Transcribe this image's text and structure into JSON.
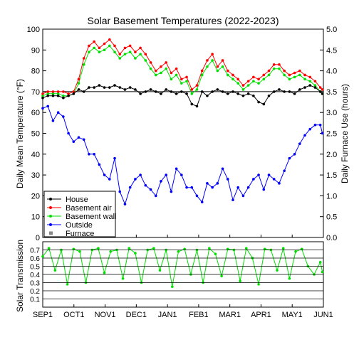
{
  "chart_data": [
    {
      "type": "line",
      "panel": "temperatures",
      "title": "Solar Basement Temperatures (2022-2023)",
      "ylabel": "Daily Mean Temperature (°F)",
      "y2label": "Daily Furnace Use (hours)",
      "ylim": [
        0,
        100
      ],
      "y2lim": [
        0.0,
        5.0
      ],
      "yticks": [
        0,
        10,
        20,
        30,
        40,
        50,
        60,
        70,
        80,
        90,
        100
      ],
      "y2ticks": [
        "0.0",
        "0.5",
        "1.0",
        "1.5",
        "2.0",
        "2.5",
        "3.0",
        "3.5",
        "4.0",
        "4.5",
        "5.0"
      ],
      "grid": "horizontal reference line at 70",
      "legend_position": "bottom-left",
      "series": [
        {
          "name": "House",
          "color": "#000000",
          "marker": "dot",
          "points": [
            [
              0,
              67
            ],
            [
              5,
              68
            ],
            [
              10,
              68
            ],
            [
              15,
              68
            ],
            [
              20,
              67
            ],
            [
              25,
              68
            ],
            [
              30,
              69
            ],
            [
              35,
              71
            ],
            [
              40,
              70
            ],
            [
              45,
              72
            ],
            [
              50,
              72
            ],
            [
              55,
              73
            ],
            [
              60,
              72
            ],
            [
              65,
              72
            ],
            [
              70,
              73
            ],
            [
              75,
              72
            ],
            [
              80,
              71
            ],
            [
              85,
              72
            ],
            [
              90,
              71
            ],
            [
              95,
              69
            ],
            [
              100,
              70
            ],
            [
              105,
              71
            ],
            [
              110,
              70
            ],
            [
              115,
              69
            ],
            [
              120,
              71
            ],
            [
              125,
              70
            ],
            [
              130,
              69
            ],
            [
              135,
              70
            ],
            [
              140,
              69
            ],
            [
              145,
              64
            ],
            [
              150,
              63
            ],
            [
              155,
              70
            ],
            [
              160,
              68
            ],
            [
              165,
              70
            ],
            [
              170,
              71
            ],
            [
              175,
              70
            ],
            [
              180,
              69
            ],
            [
              185,
              70
            ],
            [
              190,
              69
            ],
            [
              195,
              68
            ],
            [
              200,
              69
            ],
            [
              205,
              68
            ],
            [
              210,
              65
            ],
            [
              215,
              64
            ],
            [
              220,
              68
            ],
            [
              225,
              70
            ],
            [
              230,
              71
            ],
            [
              235,
              70
            ],
            [
              240,
              70
            ],
            [
              245,
              69
            ],
            [
              250,
              71
            ],
            [
              255,
              72
            ],
            [
              260,
              73
            ],
            [
              265,
              72
            ],
            [
              270,
              70
            ],
            [
              272,
              69
            ]
          ]
        },
        {
          "name": "Basement air",
          "color": "#ff0000",
          "marker": "dot",
          "points": [
            [
              0,
              69
            ],
            [
              5,
              70
            ],
            [
              10,
              70
            ],
            [
              15,
              70
            ],
            [
              20,
              70
            ],
            [
              25,
              69
            ],
            [
              30,
              70
            ],
            [
              35,
              76
            ],
            [
              40,
              86
            ],
            [
              45,
              92
            ],
            [
              50,
              94
            ],
            [
              55,
              91
            ],
            [
              60,
              93
            ],
            [
              65,
              95
            ],
            [
              70,
              92
            ],
            [
              75,
              88
            ],
            [
              80,
              91
            ],
            [
              85,
              92
            ],
            [
              90,
              89
            ],
            [
              95,
              91
            ],
            [
              100,
              88
            ],
            [
              105,
              84
            ],
            [
              110,
              80
            ],
            [
              115,
              82
            ],
            [
              120,
              84
            ],
            [
              125,
              79
            ],
            [
              130,
              81
            ],
            [
              135,
              76
            ],
            [
              140,
              77
            ],
            [
              145,
              71
            ],
            [
              150,
              73
            ],
            [
              155,
              80
            ],
            [
              160,
              85
            ],
            [
              165,
              88
            ],
            [
              170,
              82
            ],
            [
              175,
              85
            ],
            [
              180,
              80
            ],
            [
              185,
              78
            ],
            [
              190,
              76
            ],
            [
              195,
              73
            ],
            [
              200,
              75
            ],
            [
              205,
              77
            ],
            [
              210,
              76
            ],
            [
              215,
              78
            ],
            [
              220,
              80
            ],
            [
              225,
              83
            ],
            [
              230,
              83
            ],
            [
              235,
              80
            ],
            [
              240,
              78
            ],
            [
              245,
              79
            ],
            [
              250,
              80
            ],
            [
              255,
              78
            ],
            [
              260,
              77
            ],
            [
              265,
              75
            ],
            [
              270,
              72
            ],
            [
              272,
              71
            ]
          ]
        },
        {
          "name": "Basement wall",
          "color": "#00e000",
          "marker": "dot",
          "points": [
            [
              0,
              68
            ],
            [
              5,
              69
            ],
            [
              10,
              69
            ],
            [
              15,
              69
            ],
            [
              20,
              68
            ],
            [
              25,
              68
            ],
            [
              30,
              69
            ],
            [
              35,
              74
            ],
            [
              40,
              83
            ],
            [
              45,
              89
            ],
            [
              50,
              91
            ],
            [
              55,
              89
            ],
            [
              60,
              90
            ],
            [
              65,
              92
            ],
            [
              70,
              89
            ],
            [
              75,
              86
            ],
            [
              80,
              88
            ],
            [
              85,
              89
            ],
            [
              90,
              86
            ],
            [
              95,
              88
            ],
            [
              100,
              85
            ],
            [
              105,
              81
            ],
            [
              110,
              78
            ],
            [
              115,
              79
            ],
            [
              120,
              81
            ],
            [
              125,
              76
            ],
            [
              130,
              78
            ],
            [
              135,
              74
            ],
            [
              140,
              75
            ],
            [
              145,
              69
            ],
            [
              150,
              71
            ],
            [
              155,
              78
            ],
            [
              160,
              82
            ],
            [
              165,
              85
            ],
            [
              170,
              80
            ],
            [
              175,
              82
            ],
            [
              180,
              78
            ],
            [
              185,
              76
            ],
            [
              190,
              74
            ],
            [
              195,
              71
            ],
            [
              200,
              73
            ],
            [
              205,
              75
            ],
            [
              210,
              74
            ],
            [
              215,
              76
            ],
            [
              220,
              78
            ],
            [
              225,
              81
            ],
            [
              230,
              81
            ],
            [
              235,
              78
            ],
            [
              240,
              76
            ],
            [
              245,
              77
            ],
            [
              250,
              78
            ],
            [
              255,
              76
            ],
            [
              260,
              75
            ],
            [
              265,
              73
            ],
            [
              270,
              70
            ],
            [
              272,
              69
            ]
          ]
        },
        {
          "name": "Outside",
          "color": "#0000ff",
          "marker": "dot",
          "points": [
            [
              0,
              62
            ],
            [
              5,
              63
            ],
            [
              10,
              56
            ],
            [
              15,
              60
            ],
            [
              20,
              58
            ],
            [
              25,
              50
            ],
            [
              30,
              46
            ],
            [
              35,
              48
            ],
            [
              40,
              47
            ],
            [
              45,
              40
            ],
            [
              50,
              40
            ],
            [
              55,
              35
            ],
            [
              60,
              30
            ],
            [
              65,
              28
            ],
            [
              70,
              38
            ],
            [
              75,
              22
            ],
            [
              80,
              16
            ],
            [
              85,
              24
            ],
            [
              90,
              28
            ],
            [
              95,
              30
            ],
            [
              100,
              25
            ],
            [
              105,
              23
            ],
            [
              110,
              20
            ],
            [
              115,
              27
            ],
            [
              120,
              30
            ],
            [
              125,
              22
            ],
            [
              130,
              33
            ],
            [
              135,
              30
            ],
            [
              140,
              24
            ],
            [
              145,
              24
            ],
            [
              150,
              20
            ],
            [
              155,
              17
            ],
            [
              160,
              26
            ],
            [
              165,
              24
            ],
            [
              170,
              26
            ],
            [
              175,
              33
            ],
            [
              180,
              28
            ],
            [
              185,
              18
            ],
            [
              190,
              24
            ],
            [
              195,
              20
            ],
            [
              200,
              24
            ],
            [
              205,
              28
            ],
            [
              210,
              30
            ],
            [
              215,
              23
            ],
            [
              220,
              30
            ],
            [
              225,
              28
            ],
            [
              230,
              26
            ],
            [
              235,
              32
            ],
            [
              240,
              38
            ],
            [
              245,
              40
            ],
            [
              250,
              45
            ],
            [
              255,
              49
            ],
            [
              260,
              52
            ],
            [
              265,
              54
            ],
            [
              270,
              54
            ],
            [
              272,
              50
            ]
          ]
        },
        {
          "name": "Furnace",
          "color": "#888888",
          "marker": "square",
          "points": []
        }
      ]
    },
    {
      "type": "line",
      "panel": "solar",
      "ylabel": "Solar Transmission",
      "ylim": [
        0,
        0.8
      ],
      "yticks": [
        "0.1",
        "0.2",
        "0.3",
        "0.4",
        "0.5",
        "0.6",
        "0.7"
      ],
      "xlabels": [
        "SEP1",
        "OCT1",
        "NOV1",
        "DEC1",
        "JAN1",
        "FEB1",
        "MAR1",
        "APR1",
        "MAY1",
        "JUN1"
      ],
      "series": [
        {
          "name": "",
          "color": "#00e000",
          "marker": "dot",
          "points": [
            [
              0,
              0.62
            ],
            [
              6,
              0.72
            ],
            [
              12,
              0.45
            ],
            [
              18,
              0.7
            ],
            [
              24,
              0.28
            ],
            [
              30,
              0.71
            ],
            [
              36,
              0.68
            ],
            [
              42,
              0.3
            ],
            [
              48,
              0.7
            ],
            [
              54,
              0.72
            ],
            [
              60,
              0.42
            ],
            [
              66,
              0.68
            ],
            [
              72,
              0.7
            ],
            [
              78,
              0.35
            ],
            [
              84,
              0.72
            ],
            [
              90,
              0.66
            ],
            [
              96,
              0.3
            ],
            [
              102,
              0.7
            ],
            [
              108,
              0.72
            ],
            [
              114,
              0.45
            ],
            [
              120,
              0.7
            ],
            [
              126,
              0.25
            ],
            [
              132,
              0.68
            ],
            [
              138,
              0.71
            ],
            [
              144,
              0.4
            ],
            [
              150,
              0.7
            ],
            [
              156,
              0.3
            ],
            [
              162,
              0.72
            ],
            [
              168,
              0.65
            ],
            [
              174,
              0.38
            ],
            [
              180,
              0.71
            ],
            [
              186,
              0.7
            ],
            [
              192,
              0.32
            ],
            [
              198,
              0.72
            ],
            [
              204,
              0.6
            ],
            [
              210,
              0.28
            ],
            [
              216,
              0.71
            ],
            [
              222,
              0.7
            ],
            [
              228,
              0.45
            ],
            [
              234,
              0.72
            ],
            [
              240,
              0.35
            ],
            [
              246,
              0.68
            ],
            [
              252,
              0.71
            ],
            [
              258,
              0.5
            ],
            [
              264,
              0.4
            ],
            [
              270,
              0.55
            ],
            [
              272,
              0.43
            ]
          ]
        }
      ]
    }
  ]
}
